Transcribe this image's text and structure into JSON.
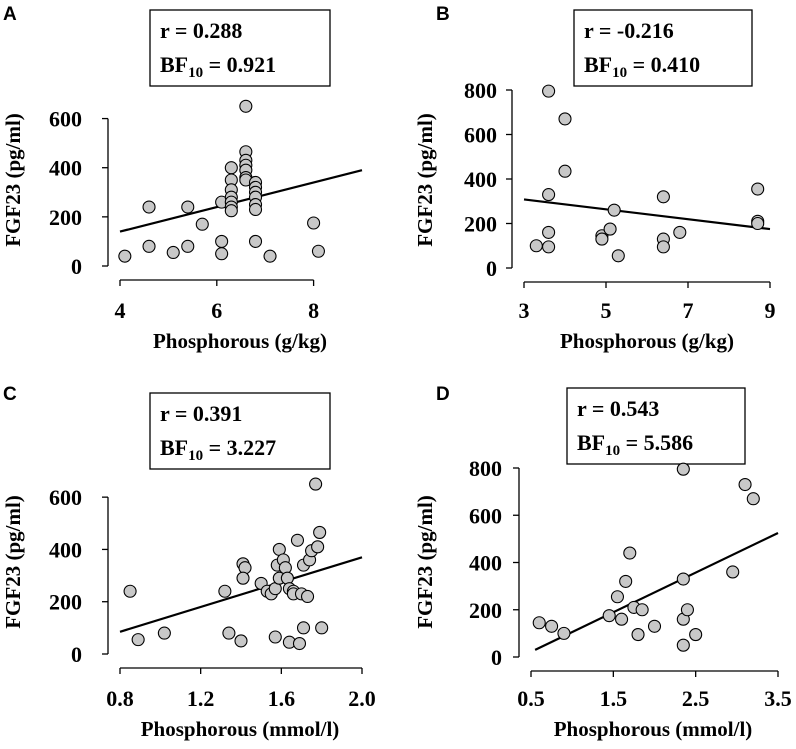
{
  "chart_data": [
    {
      "type": "scatter",
      "panel": "A",
      "stats": {
        "r_label": "r = 0.288",
        "bf_label": "BF",
        "bf_sub": "10",
        "bf_value": " = 0.921"
      },
      "xlabel": "Phosphorous (g/kg)",
      "ylabel": "FGF23 (pg/ml)",
      "xlim": [
        4,
        9
      ],
      "ylim": [
        0,
        700
      ],
      "xticks": [
        4,
        6,
        8
      ],
      "xtick_labels": [
        "4",
        "6",
        "8"
      ],
      "yticks": [
        0,
        200,
        400,
        600
      ],
      "ytick_labels": [
        "0",
        "200",
        "400",
        "600"
      ],
      "fit": [
        [
          4,
          140
        ],
        [
          9,
          390
        ]
      ],
      "points": [
        [
          4.1,
          40
        ],
        [
          4.6,
          240
        ],
        [
          4.6,
          80
        ],
        [
          5.1,
          55
        ],
        [
          5.4,
          80
        ],
        [
          5.4,
          240
        ],
        [
          5.7,
          170
        ],
        [
          6.1,
          260
        ],
        [
          6.1,
          100
        ],
        [
          6.1,
          50
        ],
        [
          6.3,
          400
        ],
        [
          6.3,
          350
        ],
        [
          6.3,
          310
        ],
        [
          6.3,
          280
        ],
        [
          6.3,
          260
        ],
        [
          6.3,
          240
        ],
        [
          6.3,
          225
        ],
        [
          6.6,
          650
        ],
        [
          6.6,
          465
        ],
        [
          6.6,
          430
        ],
        [
          6.6,
          410
        ],
        [
          6.6,
          390
        ],
        [
          6.6,
          360
        ],
        [
          6.6,
          350
        ],
        [
          6.8,
          340
        ],
        [
          6.8,
          320
        ],
        [
          6.8,
          300
        ],
        [
          6.8,
          280
        ],
        [
          6.8,
          250
        ],
        [
          6.8,
          230
        ],
        [
          6.8,
          100
        ],
        [
          7.1,
          40
        ],
        [
          8.0,
          175
        ],
        [
          8.1,
          60
        ]
      ]
    },
    {
      "type": "scatter",
      "panel": "B",
      "stats": {
        "r_label": "r = -0.216",
        "bf_label": "BF",
        "bf_sub": "10",
        "bf_value": " = 0.410"
      },
      "xlabel": "Phosphorous (g/kg)",
      "ylabel": "FGF23 (pg/ml)",
      "xlim": [
        3,
        9
      ],
      "ylim": [
        0,
        800
      ],
      "xticks": [
        3,
        5,
        7,
        9
      ],
      "xtick_labels": [
        "3",
        "5",
        "7",
        "9"
      ],
      "yticks": [
        0,
        200,
        400,
        600,
        800
      ],
      "ytick_labels": [
        "0",
        "200",
        "400",
        "600",
        "800"
      ],
      "fit": [
        [
          3,
          308
        ],
        [
          9,
          175
        ]
      ],
      "points": [
        [
          3.3,
          100
        ],
        [
          3.6,
          795
        ],
        [
          3.6,
          330
        ],
        [
          3.6,
          160
        ],
        [
          3.6,
          95
        ],
        [
          4.0,
          670
        ],
        [
          4.0,
          435
        ],
        [
          4.9,
          145
        ],
        [
          4.9,
          130
        ],
        [
          5.1,
          175
        ],
        [
          5.2,
          260
        ],
        [
          5.3,
          55
        ],
        [
          6.4,
          320
        ],
        [
          6.4,
          130
        ],
        [
          6.4,
          95
        ],
        [
          6.8,
          160
        ],
        [
          8.7,
          355
        ],
        [
          8.7,
          210
        ],
        [
          8.7,
          200
        ]
      ]
    },
    {
      "type": "scatter",
      "panel": "C",
      "stats": {
        "r_label": "r = 0.391",
        "bf_label": "BF",
        "bf_sub": "10",
        "bf_value": " = 3.227"
      },
      "xlabel": "Phosphorous (mmol/l)",
      "ylabel": "FGF23 (pg/ml)",
      "xlim": [
        0.8,
        2.0
      ],
      "ylim": [
        0,
        700
      ],
      "xticks": [
        0.8,
        1.2,
        1.6,
        2.0
      ],
      "xtick_labels": [
        "0.8",
        "1.2",
        "1.6",
        "2.0"
      ],
      "yticks": [
        0,
        200,
        400,
        600
      ],
      "ytick_labels": [
        "0",
        "200",
        "400",
        "600"
      ],
      "fit": [
        [
          0.8,
          85
        ],
        [
          2.0,
          370
        ]
      ],
      "points": [
        [
          0.85,
          240
        ],
        [
          0.89,
          55
        ],
        [
          1.02,
          80
        ],
        [
          1.32,
          240
        ],
        [
          1.34,
          80
        ],
        [
          1.4,
          50
        ],
        [
          1.41,
          345
        ],
        [
          1.42,
          330
        ],
        [
          1.41,
          290
        ],
        [
          1.5,
          270
        ],
        [
          1.53,
          240
        ],
        [
          1.55,
          230
        ],
        [
          1.57,
          65
        ],
        [
          1.57,
          250
        ],
        [
          1.58,
          340
        ],
        [
          1.59,
          290
        ],
        [
          1.59,
          400
        ],
        [
          1.61,
          360
        ],
        [
          1.62,
          330
        ],
        [
          1.63,
          290
        ],
        [
          1.64,
          45
        ],
        [
          1.64,
          250
        ],
        [
          1.66,
          240
        ],
        [
          1.66,
          230
        ],
        [
          1.68,
          435
        ],
        [
          1.69,
          40
        ],
        [
          1.7,
          230
        ],
        [
          1.71,
          100
        ],
        [
          1.71,
          340
        ],
        [
          1.73,
          220
        ],
        [
          1.74,
          360
        ],
        [
          1.75,
          395
        ],
        [
          1.77,
          650
        ],
        [
          1.78,
          410
        ],
        [
          1.79,
          465
        ],
        [
          1.8,
          100
        ]
      ]
    },
    {
      "type": "scatter",
      "panel": "D",
      "stats": {
        "r_label": "r = 0.543",
        "bf_label": "BF",
        "bf_sub": "10",
        "bf_value": " = 5.586"
      },
      "xlabel": "Phosphorous (mmol/l)",
      "ylabel": "FGF23 (pg/ml)",
      "xlim": [
        0.5,
        3.5
      ],
      "ylim": [
        0,
        800
      ],
      "xticks": [
        0.5,
        1.5,
        2.5,
        3.5
      ],
      "xtick_labels": [
        "0.5",
        "1.5",
        "2.5",
        "3.5"
      ],
      "yticks": [
        0,
        200,
        400,
        600,
        800
      ],
      "ytick_labels": [
        "0",
        "200",
        "400",
        "600",
        "800"
      ],
      "fit": [
        [
          0.55,
          30
        ],
        [
          3.5,
          525
        ]
      ],
      "points": [
        [
          0.6,
          145
        ],
        [
          0.75,
          130
        ],
        [
          0.9,
          100
        ],
        [
          1.45,
          175
        ],
        [
          1.55,
          255
        ],
        [
          1.6,
          160
        ],
        [
          1.65,
          320
        ],
        [
          1.7,
          440
        ],
        [
          1.75,
          210
        ],
        [
          1.8,
          95
        ],
        [
          1.85,
          200
        ],
        [
          2.0,
          130
        ],
        [
          2.35,
          330
        ],
        [
          2.35,
          160
        ],
        [
          2.35,
          50
        ],
        [
          2.35,
          795
        ],
        [
          2.4,
          200
        ],
        [
          2.5,
          95
        ],
        [
          2.95,
          360
        ],
        [
          3.1,
          730
        ],
        [
          3.2,
          670
        ]
      ]
    }
  ]
}
